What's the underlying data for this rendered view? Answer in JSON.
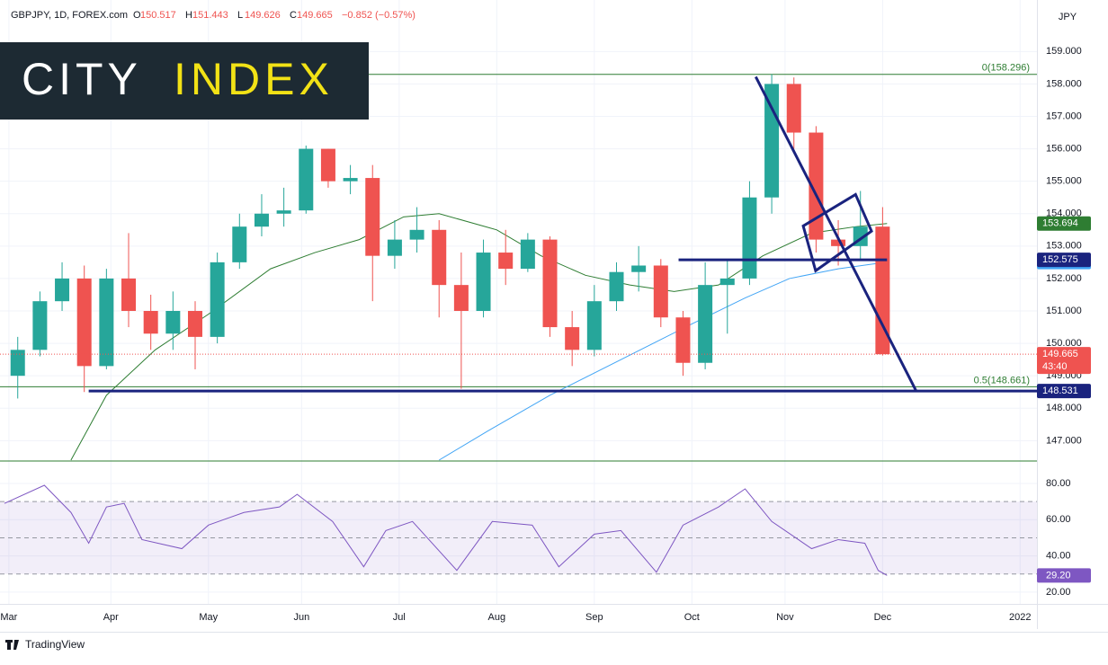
{
  "header": {
    "symbol": "GBPJPY, 1D, FOREX.com",
    "ohlc": [
      {
        "prefix": "O",
        "value": 150.517
      },
      {
        "prefix": "H",
        "value": 151.443
      },
      {
        "prefix": "L",
        "value": 149.626
      },
      {
        "prefix": "C",
        "value": 149.665
      }
    ],
    "change": "−0.852 (−0.57%)",
    "currency": "JPY"
  },
  "branding": {
    "city": "CITY",
    "index": "INDEX",
    "footer": "TradingView"
  },
  "chart_data": [
    {
      "type": "candlestick",
      "xlim": [
        -2,
        231.8
      ],
      "ylim": [
        146.4,
        160.45
      ],
      "yticks": [
        {
          "value": 147,
          "label": "147.000"
        },
        {
          "value": 148,
          "label": "148.000"
        },
        {
          "value": 149,
          "label": "149.000"
        },
        {
          "value": 150,
          "label": "150.000"
        },
        {
          "value": 151,
          "label": "151.000"
        },
        {
          "value": 152,
          "label": "152.000"
        },
        {
          "value": 153,
          "label": "153.000"
        },
        {
          "value": 154,
          "label": "154.000"
        },
        {
          "value": 155,
          "label": "155.000"
        },
        {
          "value": 156,
          "label": "156.000"
        },
        {
          "value": 157,
          "label": "157.000"
        },
        {
          "value": 158,
          "label": "158.000"
        },
        {
          "value": 159,
          "label": "159.000"
        }
      ],
      "up_color": "#26a69a",
      "down_color": "#ef5350",
      "countdown": "43:40",
      "candles": {
        "x": [
          2,
          7,
          12,
          17,
          22,
          27,
          32,
          37,
          42,
          47,
          52,
          57,
          62,
          67,
          72,
          77,
          82,
          87,
          92,
          97,
          102,
          107,
          112,
          117,
          122,
          127,
          132,
          137,
          142,
          147,
          152,
          157,
          162,
          167,
          172,
          177,
          182,
          187,
          192,
          197
        ],
        "open": [
          149.0,
          149.8,
          151.3,
          152.0,
          149.3,
          152.0,
          151.0,
          150.3,
          151.0,
          150.2,
          152.5,
          153.6,
          154.0,
          154.1,
          156.0,
          155.0,
          155.1,
          152.7,
          153.2,
          153.5,
          151.8,
          151.0,
          152.8,
          152.3,
          153.2,
          150.5,
          149.8,
          151.3,
          152.2,
          152.4,
          150.8,
          149.4,
          151.8,
          152.0,
          154.5,
          158.0,
          156.5,
          153.2,
          153.0,
          153.6
        ],
        "high": [
          150.2,
          151.6,
          152.5,
          152.4,
          152.3,
          153.4,
          151.5,
          151.6,
          151.3,
          152.8,
          154.0,
          154.6,
          154.8,
          156.1,
          156.0,
          155.5,
          155.5,
          153.8,
          154.2,
          153.8,
          152.8,
          153.2,
          153.5,
          153.4,
          153.3,
          151.0,
          151.8,
          152.5,
          153.0,
          152.6,
          151.0,
          152.5,
          152.6,
          155.0,
          158.3,
          158.2,
          156.7,
          153.8,
          154.7,
          154.2
        ],
        "low": [
          148.3,
          149.6,
          151.0,
          148.5,
          149.2,
          150.5,
          149.8,
          149.8,
          149.2,
          150.0,
          152.3,
          153.3,
          153.6,
          154.0,
          154.8,
          154.6,
          151.3,
          152.3,
          152.8,
          150.8,
          148.6,
          150.8,
          151.8,
          152.2,
          150.2,
          149.3,
          149.6,
          151.0,
          151.6,
          150.5,
          149.0,
          149.2,
          150.3,
          151.8,
          154.0,
          156.0,
          152.8,
          152.4,
          152.6,
          149.626
        ],
        "close": [
          149.8,
          151.3,
          152.0,
          149.3,
          152.0,
          151.0,
          150.3,
          151.0,
          150.2,
          152.5,
          153.6,
          154.0,
          154.1,
          156.0,
          155.0,
          155.1,
          152.7,
          153.2,
          153.5,
          151.8,
          151.0,
          152.8,
          152.3,
          153.2,
          150.5,
          149.8,
          151.3,
          152.2,
          152.4,
          150.8,
          149.4,
          151.8,
          152.0,
          154.5,
          158.0,
          156.5,
          153.2,
          153.0,
          153.6,
          149.665
        ]
      },
      "moving_averages": [
        {
          "color": "#2e7d32",
          "x": [
            14,
            22,
            33,
            45,
            59,
            69,
            79,
            89,
            97,
            110,
            120,
            130,
            140,
            150,
            160,
            170,
            181,
            191,
            198
          ],
          "values": [
            146.4,
            148.4,
            149.8,
            150.9,
            152.3,
            152.8,
            153.2,
            153.9,
            154.0,
            153.5,
            152.7,
            152.1,
            151.8,
            151.6,
            151.8,
            152.7,
            153.4,
            153.6,
            153.694
          ]
        },
        {
          "color": "#42a5f5",
          "x": [
            97,
            108,
            122,
            138,
            154,
            166,
            176,
            187,
            198
          ],
          "values": [
            146.4,
            147.3,
            148.4,
            149.5,
            150.6,
            151.4,
            152.0,
            152.3,
            152.506
          ]
        }
      ],
      "fib_levels": [
        {
          "label": "0(158.296)",
          "value": 158.296,
          "color": "#2e7d32"
        },
        {
          "label": "0.5(148.661)",
          "value": 148.661,
          "color": "#2e7d32"
        }
      ],
      "horizontal_lines": [
        {
          "x": [
            18,
            231.8
          ],
          "value": 148.531
        },
        {
          "x": [
            151,
            198
          ],
          "value": 152.575
        }
      ],
      "drawing_color": "#1a237e",
      "trendlines": [
        {
          "x": [
            168.4,
            204.5
          ],
          "values": [
            158.22,
            148.55
          ],
          "closed": false
        },
        {
          "x": [
            179.1,
            190.9,
            194.5,
            181.9
          ],
          "values": [
            153.62,
            154.59,
            153.46,
            152.24
          ],
          "closed": true
        }
      ]
    },
    {
      "type": "line",
      "xlim": [
        -2,
        231.8
      ],
      "ylim": [
        13.5,
        91.4
      ],
      "color": "#7e57c2",
      "yticks": [
        {
          "value": 20,
          "label": "20.00"
        },
        {
          "value": 40,
          "label": "40.00"
        },
        {
          "value": 60,
          "label": "60.00"
        },
        {
          "value": 80,
          "label": "80.00"
        }
      ],
      "levels": [
        30,
        50,
        70
      ],
      "xticks": [
        {
          "value": 0,
          "label": "Mar"
        },
        {
          "value": 23,
          "label": "Apr"
        },
        {
          "value": 45,
          "label": "May"
        },
        {
          "value": 66,
          "label": "Jun"
        },
        {
          "value": 88,
          "label": "Jul"
        },
        {
          "value": 110,
          "label": "Aug"
        },
        {
          "value": 132,
          "label": "Sep"
        },
        {
          "value": 154,
          "label": "Oct"
        },
        {
          "value": 175,
          "label": "Nov"
        },
        {
          "value": 197,
          "label": "Dec"
        },
        {
          "value": 228,
          "label": "2022"
        }
      ],
      "x": [
        -1,
        8,
        14,
        18,
        22,
        26,
        30,
        39,
        45,
        53,
        61,
        65,
        73,
        80,
        85,
        91,
        101,
        109,
        118,
        124,
        132,
        138,
        146,
        152,
        160,
        166,
        172,
        181,
        187,
        193,
        196,
        198
      ],
      "values": [
        69,
        79,
        64,
        47,
        67,
        69,
        49,
        44,
        57,
        64,
        67,
        74,
        59,
        34,
        54,
        59,
        32,
        59,
        57,
        34,
        52,
        54,
        31,
        57,
        67,
        77,
        59,
        44,
        49,
        47,
        32,
        29.2
      ],
      "last_value_label": "29.20"
    }
  ]
}
